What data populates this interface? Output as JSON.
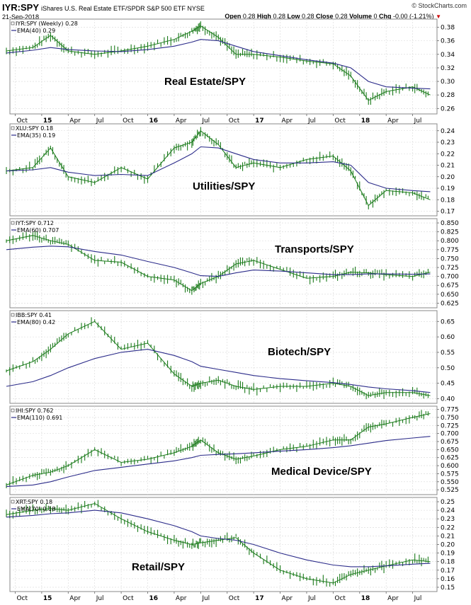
{
  "header": {
    "symbol": "IYR:SPY",
    "description": "iShares U.S. Real Estate ETF/SPDR S&P 500 ETF  NYSE",
    "date": "21-Sep-2018",
    "brand": "© StockCharts.com",
    "ohlc": {
      "open_label": "Open",
      "open": "0.28",
      "high_label": "High",
      "high": "0.28",
      "low_label": "Low",
      "low": "0.28",
      "close_label": "Close",
      "close": "0.28",
      "volume_label": "Volume",
      "volume": "0",
      "chg_label": "Chg",
      "chg": "-0.00 (-1.21%)"
    }
  },
  "x_axis": {
    "labels": [
      "Oct",
      "15",
      "Apr",
      "Jul",
      "Oct",
      "16",
      "Apr",
      "Jul",
      "Oct",
      "17",
      "Apr",
      "Jul",
      "Oct",
      "18",
      "Apr",
      "Jul"
    ],
    "bold": [
      false,
      true,
      false,
      false,
      false,
      true,
      false,
      false,
      false,
      true,
      false,
      false,
      false,
      true,
      false,
      false
    ],
    "fractions": [
      0.0,
      0.0833,
      0.1667,
      0.25,
      0.3333,
      0.4167,
      0.5,
      0.5833,
      0.6667,
      0.75,
      0.8333,
      0.9167,
      1.0,
      1.0833,
      1.1667,
      1.25
    ]
  },
  "colors": {
    "price": "#1a7a1a",
    "ema": "#2c2c8a",
    "grid": "#d8d8d8"
  },
  "chart_data": [
    {
      "type": "line",
      "title": "Real Estate/SPY",
      "legend_main": "IYR:SPY (Weekly) 0.28",
      "legend_ema": "EMA(40) 0.29",
      "yticks": [
        "0.38",
        "0.36",
        "0.34",
        "0.32",
        "0.30",
        "0.28",
        "0.26"
      ],
      "ylim": [
        0.252,
        0.392
      ],
      "x": [
        "2014-09",
        "2014-12",
        "2015-02",
        "2015-04",
        "2015-07",
        "2015-10",
        "2016-01",
        "2016-04",
        "2016-06",
        "2016-07",
        "2016-09",
        "2016-11",
        "2017-01",
        "2017-04",
        "2017-07",
        "2017-10",
        "2017-12",
        "2018-02",
        "2018-04",
        "2018-07",
        "2018-09"
      ],
      "series": [
        {
          "values": [
            0.345,
            0.35,
            0.368,
            0.345,
            0.34,
            0.345,
            0.352,
            0.362,
            0.374,
            0.382,
            0.365,
            0.34,
            0.34,
            0.336,
            0.33,
            0.326,
            0.308,
            0.272,
            0.285,
            0.292,
            0.28
          ]
        },
        {
          "values": [
            0.342,
            0.346,
            0.35,
            0.347,
            0.345,
            0.344,
            0.347,
            0.352,
            0.358,
            0.362,
            0.36,
            0.352,
            0.344,
            0.338,
            0.332,
            0.327,
            0.32,
            0.3,
            0.292,
            0.29,
            0.289
          ]
        }
      ]
    },
    {
      "type": "line",
      "title": "Utilities/SPY",
      "legend_main": "XLU:SPY 0.18",
      "legend_ema": "EMA(35) 0.19",
      "yticks": [
        "0.24",
        "0.23",
        "0.22",
        "0.21",
        "0.20",
        "0.19",
        "0.18",
        "0.17"
      ],
      "ylim": [
        0.166,
        0.246
      ],
      "x": [
        "2014-09",
        "2014-12",
        "2015-02",
        "2015-04",
        "2015-07",
        "2015-10",
        "2016-01",
        "2016-04",
        "2016-06",
        "2016-07",
        "2016-09",
        "2016-11",
        "2017-01",
        "2017-04",
        "2017-07",
        "2017-10",
        "2017-12",
        "2018-02",
        "2018-04",
        "2018-07",
        "2018-09"
      ],
      "series": [
        {
          "values": [
            0.205,
            0.208,
            0.225,
            0.2,
            0.195,
            0.208,
            0.198,
            0.225,
            0.23,
            0.24,
            0.228,
            0.208,
            0.212,
            0.208,
            0.215,
            0.218,
            0.205,
            0.175,
            0.188,
            0.186,
            0.18
          ]
        },
        {
          "values": [
            0.205,
            0.206,
            0.208,
            0.204,
            0.201,
            0.202,
            0.201,
            0.212,
            0.22,
            0.226,
            0.225,
            0.22,
            0.215,
            0.212,
            0.212,
            0.213,
            0.21,
            0.195,
            0.19,
            0.188,
            0.187
          ]
        }
      ]
    },
    {
      "type": "line",
      "title": "Transports/SPY",
      "legend_main": "IYT:SPY 0.712",
      "legend_ema": "EMA(60) 0.707",
      "yticks": [
        "0.850",
        "0.825",
        "0.800",
        "0.775",
        "0.750",
        "0.725",
        "0.700",
        "0.675",
        "0.650",
        "0.625"
      ],
      "ylim": [
        0.612,
        0.862
      ],
      "x": [
        "2014-09",
        "2014-12",
        "2015-02",
        "2015-04",
        "2015-07",
        "2015-10",
        "2016-01",
        "2016-04",
        "2016-06",
        "2016-07",
        "2016-09",
        "2016-11",
        "2017-01",
        "2017-04",
        "2017-07",
        "2017-10",
        "2017-12",
        "2018-02",
        "2018-04",
        "2018-07",
        "2018-09"
      ],
      "series": [
        {
          "values": [
            0.8,
            0.815,
            0.8,
            0.79,
            0.745,
            0.74,
            0.7,
            0.69,
            0.66,
            0.68,
            0.7,
            0.735,
            0.745,
            0.72,
            0.695,
            0.7,
            0.712,
            0.71,
            0.705,
            0.7,
            0.712
          ]
        },
        {
          "values": [
            0.775,
            0.782,
            0.785,
            0.783,
            0.77,
            0.76,
            0.742,
            0.725,
            0.71,
            0.702,
            0.7,
            0.71,
            0.718,
            0.715,
            0.71,
            0.705,
            0.705,
            0.707,
            0.707,
            0.706,
            0.707
          ]
        }
      ]
    },
    {
      "type": "line",
      "title": "Biotech/SPY",
      "legend_main": "IBB:SPY 0.41",
      "legend_ema": "EMA(80) 0.42",
      "yticks": [
        "0.65",
        "0.60",
        "0.55",
        "0.50",
        "0.45",
        "0.40"
      ],
      "ylim": [
        0.385,
        0.685
      ],
      "x": [
        "2014-09",
        "2014-12",
        "2015-02",
        "2015-04",
        "2015-07",
        "2015-10",
        "2016-01",
        "2016-04",
        "2016-06",
        "2016-07",
        "2016-09",
        "2016-11",
        "2017-01",
        "2017-04",
        "2017-07",
        "2017-10",
        "2017-12",
        "2018-02",
        "2018-04",
        "2018-07",
        "2018-09"
      ],
      "series": [
        {
          "values": [
            0.49,
            0.52,
            0.56,
            0.61,
            0.65,
            0.56,
            0.58,
            0.48,
            0.44,
            0.45,
            0.46,
            0.44,
            0.43,
            0.44,
            0.44,
            0.45,
            0.44,
            0.41,
            0.42,
            0.42,
            0.41
          ]
        },
        {
          "values": [
            0.44,
            0.455,
            0.475,
            0.5,
            0.53,
            0.55,
            0.56,
            0.54,
            0.52,
            0.505,
            0.495,
            0.485,
            0.475,
            0.465,
            0.458,
            0.452,
            0.446,
            0.438,
            0.432,
            0.426,
            0.42
          ]
        }
      ]
    },
    {
      "type": "line",
      "title": "Medical Device/SPY",
      "legend_main": "IHI:SPY 0.762",
      "legend_ema": "EMA(110) 0.691",
      "yticks": [
        "0.775",
        "0.750",
        "0.725",
        "0.700",
        "0.675",
        "0.650",
        "0.625",
        "0.600",
        "0.575",
        "0.550",
        "0.525"
      ],
      "ylim": [
        0.51,
        0.785
      ],
      "x": [
        "2014-09",
        "2014-12",
        "2015-02",
        "2015-04",
        "2015-07",
        "2015-10",
        "2016-01",
        "2016-04",
        "2016-06",
        "2016-07",
        "2016-09",
        "2016-11",
        "2017-01",
        "2017-04",
        "2017-07",
        "2017-10",
        "2017-12",
        "2018-02",
        "2018-04",
        "2018-07",
        "2018-09"
      ],
      "series": [
        {
          "values": [
            0.54,
            0.57,
            0.58,
            0.6,
            0.65,
            0.61,
            0.62,
            0.64,
            0.66,
            0.68,
            0.64,
            0.62,
            0.63,
            0.65,
            0.66,
            0.68,
            0.68,
            0.72,
            0.73,
            0.75,
            0.762
          ]
        },
        {
          "values": [
            0.535,
            0.54,
            0.55,
            0.565,
            0.585,
            0.595,
            0.605,
            0.615,
            0.625,
            0.632,
            0.635,
            0.637,
            0.64,
            0.645,
            0.65,
            0.656,
            0.662,
            0.67,
            0.678,
            0.686,
            0.691
          ]
        }
      ]
    },
    {
      "type": "line",
      "title": "Retail/SPY",
      "legend_main": "XRT:SPY 0.18",
      "legend_ema": "EMA(70) 0.18",
      "yticks": [
        "0.25",
        "0.24",
        "0.23",
        "0.22",
        "0.21",
        "0.20",
        "0.19",
        "0.18",
        "0.17",
        "0.16",
        "0.15"
      ],
      "ylim": [
        0.145,
        0.255
      ],
      "x": [
        "2014-09",
        "2014-12",
        "2015-02",
        "2015-04",
        "2015-07",
        "2015-10",
        "2016-01",
        "2016-04",
        "2016-06",
        "2016-07",
        "2016-09",
        "2016-11",
        "2017-01",
        "2017-04",
        "2017-07",
        "2017-10",
        "2017-12",
        "2018-02",
        "2018-04",
        "2018-07",
        "2018-09"
      ],
      "series": [
        {
          "values": [
            0.235,
            0.24,
            0.242,
            0.24,
            0.248,
            0.23,
            0.215,
            0.205,
            0.2,
            0.202,
            0.205,
            0.208,
            0.19,
            0.17,
            0.16,
            0.155,
            0.165,
            0.17,
            0.175,
            0.182,
            0.18
          ]
        },
        {
          "values": [
            0.232,
            0.234,
            0.236,
            0.237,
            0.24,
            0.237,
            0.23,
            0.222,
            0.215,
            0.21,
            0.207,
            0.205,
            0.2,
            0.19,
            0.182,
            0.176,
            0.174,
            0.174,
            0.175,
            0.177,
            0.178
          ]
        }
      ]
    }
  ]
}
